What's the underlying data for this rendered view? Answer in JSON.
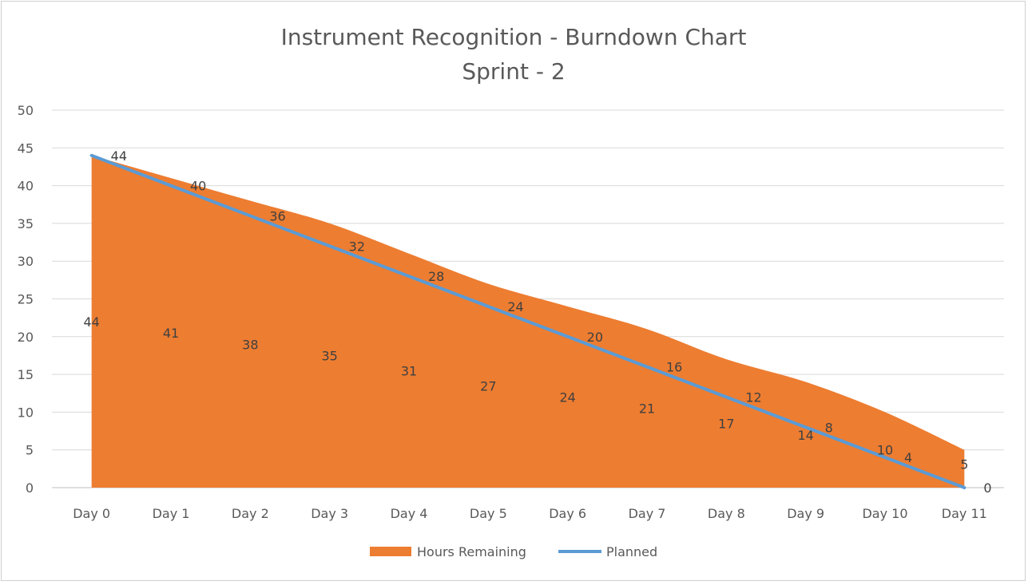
{
  "chart_data": {
    "type": "area",
    "title": "Instrument Recognition - Burndown Chart",
    "subtitle": "Sprint - 2",
    "categories": [
      "Day 0",
      "Day 1",
      "Day 2",
      "Day 3",
      "Day 4",
      "Day 5",
      "Day 6",
      "Day 7",
      "Day 8",
      "Day 9",
      "Day 10",
      "Day 11"
    ],
    "series": [
      {
        "name": "Hours Remaining",
        "type": "area",
        "color": "#ED7D31",
        "values": [
          44,
          41,
          38,
          35,
          31,
          27,
          24,
          21,
          17,
          14,
          10,
          5
        ],
        "label_text": [
          "44",
          "41",
          "38",
          "35",
          "31",
          "27",
          "24",
          "21",
          "17",
          "14",
          "10",
          "5"
        ]
      },
      {
        "name": "Planned",
        "type": "line",
        "color": "#5B9BD5",
        "values": [
          44,
          40,
          36,
          32,
          28,
          24,
          20,
          16,
          12,
          8,
          4,
          0
        ],
        "label_text": [
          "44",
          "40",
          "36",
          "32",
          "28",
          "24",
          "20",
          "16",
          "12",
          "8",
          "4",
          "0"
        ]
      }
    ],
    "y_ticks": [
      "0",
      "5",
      "10",
      "15",
      "20",
      "25",
      "30",
      "35",
      "40",
      "45",
      "50"
    ],
    "ylim": [
      0,
      50
    ],
    "grid": true,
    "legend_position": "bottom"
  }
}
